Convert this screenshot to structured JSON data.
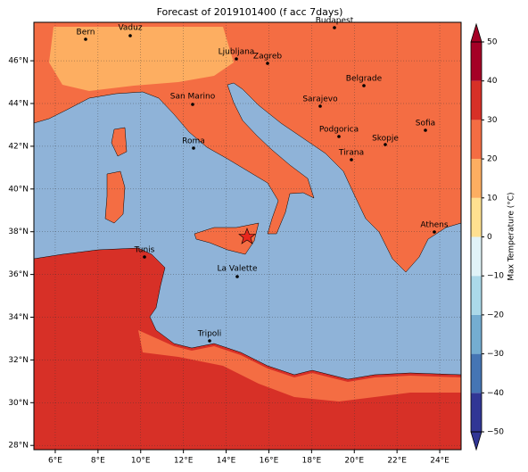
{
  "title": "Forecast of 2019101400 (f acc 7days)",
  "map": {
    "xlim": [
      5,
      25
    ],
    "ylim": [
      27.8,
      47.8
    ],
    "xticks": [
      {
        "value": 6,
        "label": "6°E"
      },
      {
        "value": 8,
        "label": "8°E"
      },
      {
        "value": 10,
        "label": "10°E"
      },
      {
        "value": 12,
        "label": "12°E"
      },
      {
        "value": 14,
        "label": "14°E"
      },
      {
        "value": 16,
        "label": "16°E"
      },
      {
        "value": 18,
        "label": "18°E"
      },
      {
        "value": 20,
        "label": "20°E"
      },
      {
        "value": 22,
        "label": "22°E"
      },
      {
        "value": 24,
        "label": "24°E"
      }
    ],
    "yticks": [
      {
        "value": 28,
        "label": "28°N"
      },
      {
        "value": 30,
        "label": "30°N"
      },
      {
        "value": 32,
        "label": "32°N"
      },
      {
        "value": 34,
        "label": "34°N"
      },
      {
        "value": 36,
        "label": "36°N"
      },
      {
        "value": 38,
        "label": "38°N"
      },
      {
        "value": 40,
        "label": "40°N"
      },
      {
        "value": 42,
        "label": "42°N"
      },
      {
        "value": 44,
        "label": "44°N"
      },
      {
        "value": 46,
        "label": "46°N"
      }
    ],
    "grid": true,
    "cities": [
      "Bern",
      "Vaduz",
      "Budapest",
      "Ljubljana",
      "Zagreb",
      "Belgrade",
      "San Marino",
      "Sarajevo",
      "Sofia",
      "Podgorica",
      "Skopje",
      "Roma",
      "Tirana",
      "Athens",
      "Tunis",
      "La Valette",
      "Tripoli"
    ]
  },
  "colorbar": {
    "label": "Max Temperature (°C)",
    "lim": [
      -50,
      50
    ],
    "ticks": [
      {
        "value": -50,
        "label": "−50"
      },
      {
        "value": -40,
        "label": "−40"
      },
      {
        "value": -30,
        "label": "−30"
      },
      {
        "value": -20,
        "label": "−20"
      },
      {
        "value": -10,
        "label": "−10"
      },
      0,
      10,
      20,
      30,
      40,
      50
    ],
    "colors": [
      "#313695",
      "#4575b4",
      "#74add1",
      "#abd9e9",
      "#e0f3f8",
      "#fee090",
      "#fdae61",
      "#f46d43",
      "#d73027",
      "#a50026"
    ]
  }
}
